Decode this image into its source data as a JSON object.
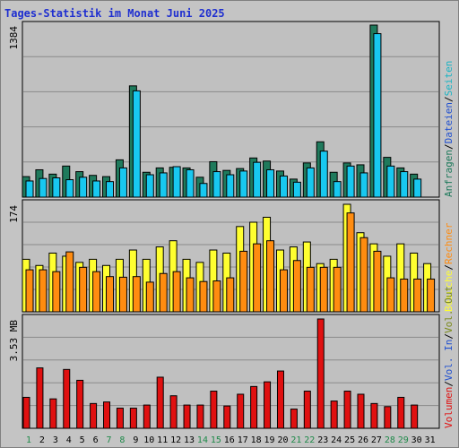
{
  "header": {
    "title": "Tages-Statistik im Monat Juni 2025"
  },
  "colors": {
    "background": "#c4c4c4",
    "plot_bg": "#c0c0c0",
    "title": "#1f2fd0",
    "anfragen": "#1f7a5c",
    "dateien": "#18c8f0",
    "seiten": "#1ab4c4",
    "besuche": "#ffff30",
    "rechner": "#ff8c10",
    "vol_in": "#2050d0",
    "vol_out": "#7a8a18",
    "volumen": "#e01010",
    "weekend_label": "#1f8a4a",
    "weekday_label": "#000000"
  },
  "chart_data": [
    {
      "type": "bar",
      "panel": "hits",
      "ymax_label": "1384",
      "ylim": [
        0,
        1384
      ],
      "grid": true,
      "legend_right": [
        "Anfragen",
        "/",
        "Dateien",
        "/",
        "Seiten"
      ],
      "categories": [
        "1",
        "2",
        "3",
        "4",
        "5",
        "6",
        "7",
        "8",
        "9",
        "10",
        "11",
        "12",
        "13",
        "14",
        "15",
        "16",
        "17",
        "18",
        "19",
        "20",
        "21",
        "22",
        "23",
        "24",
        "25",
        "26",
        "27",
        "28",
        "29",
        "30",
        "31"
      ],
      "series": [
        {
          "name": "Anfragen",
          "values": [
            165,
            220,
            185,
            250,
            205,
            175,
            165,
            300,
            895,
            200,
            235,
            240,
            235,
            160,
            285,
            215,
            230,
            315,
            290,
            210,
            145,
            275,
            445,
            200,
            275,
            260,
            1384,
            320,
            235,
            185,
            0
          ]
        },
        {
          "name": "Dateien",
          "values": [
            130,
            150,
            155,
            140,
            160,
            130,
            125,
            235,
            855,
            180,
            195,
            245,
            220,
            110,
            205,
            180,
            210,
            280,
            220,
            170,
            120,
            235,
            370,
            125,
            250,
            195,
            1315,
            250,
            205,
            145,
            0
          ]
        }
      ]
    },
    {
      "type": "bar",
      "panel": "visits",
      "ymax_label": "174",
      "ylim": [
        0,
        174
      ],
      "grid": true,
      "legend_right": [
        "Besuche",
        "/",
        "Rechner"
      ],
      "categories": [
        "1",
        "2",
        "3",
        "4",
        "5",
        "6",
        "7",
        "8",
        "9",
        "10",
        "11",
        "12",
        "13",
        "14",
        "15",
        "16",
        "17",
        "18",
        "19",
        "20",
        "21",
        "22",
        "23",
        "24",
        "25",
        "26",
        "27",
        "28",
        "29",
        "30",
        "31"
      ],
      "series": [
        {
          "name": "Besuche",
          "values": [
            85,
            75,
            95,
            90,
            80,
            85,
            75,
            85,
            100,
            85,
            105,
            115,
            85,
            80,
            100,
            95,
            138,
            145,
            153,
            100,
            105,
            113,
            78,
            85,
            174,
            128,
            110,
            90,
            110,
            95,
            78
          ]
        },
        {
          "name": "Rechner",
          "values": [
            68,
            68,
            65,
            97,
            72,
            65,
            57,
            56,
            57,
            48,
            62,
            65,
            55,
            49,
            50,
            55,
            98,
            110,
            115,
            68,
            83,
            72,
            72,
            72,
            160,
            120,
            98,
            55,
            53,
            53,
            53
          ]
        }
      ]
    },
    {
      "type": "bar",
      "panel": "volume",
      "ymax_label": "3.53 MB",
      "ylim": [
        0,
        3.53
      ],
      "grid": true,
      "legend_right": [
        "Volumen",
        "/",
        "Vol. In",
        "/",
        "Vol. Out"
      ],
      "categories": [
        "1",
        "2",
        "3",
        "4",
        "5",
        "6",
        "7",
        "8",
        "9",
        "10",
        "11",
        "12",
        "13",
        "14",
        "15",
        "16",
        "17",
        "18",
        "19",
        "20",
        "21",
        "22",
        "23",
        "24",
        "25",
        "26",
        "27",
        "28",
        "29",
        "30",
        "31"
      ],
      "series": [
        {
          "name": "Volumen",
          "values": [
            1.0,
            1.95,
            0.95,
            1.9,
            1.55,
            0.8,
            0.85,
            0.65,
            0.65,
            0.75,
            1.65,
            1.05,
            0.75,
            0.75,
            1.2,
            0.72,
            1.1,
            1.35,
            1.5,
            1.85,
            0.62,
            1.2,
            3.53,
            0.88,
            1.2,
            1.1,
            0.8,
            0.7,
            1.0,
            0.75,
            0
          ]
        }
      ]
    }
  ],
  "x_axis": {
    "labels": [
      "1",
      "2",
      "3",
      "4",
      "5",
      "6",
      "7",
      "8",
      "9",
      "10",
      "11",
      "12",
      "13",
      "14",
      "15",
      "16",
      "17",
      "18",
      "19",
      "20",
      "21",
      "22",
      "23",
      "24",
      "25",
      "26",
      "27",
      "28",
      "29",
      "30",
      "31"
    ],
    "weekend": [
      1,
      7,
      8,
      14,
      15,
      21,
      22,
      28,
      29
    ]
  }
}
